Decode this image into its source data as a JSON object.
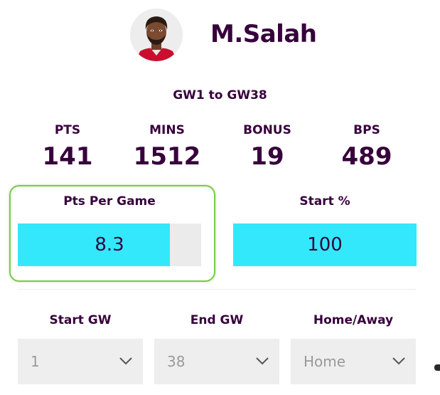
{
  "player": {
    "name": "M.Salah"
  },
  "range": {
    "label": "GW1 to GW38"
  },
  "stats": [
    {
      "label": "PTS",
      "value": "141"
    },
    {
      "label": "MINS",
      "value": "1512"
    },
    {
      "label": "BONUS",
      "value": "19"
    },
    {
      "label": "BPS",
      "value": "489"
    }
  ],
  "metrics": {
    "pts_per_game": {
      "label": "Pts Per Game",
      "value": "8.3",
      "fill_fraction": 0.83,
      "fill_color": "#33e8fb"
    },
    "start_pct": {
      "label": "Start %",
      "value": "100",
      "fill_fraction": 1.0,
      "fill_color": "#33e8fb"
    }
  },
  "filters": {
    "start_gw": {
      "label": "Start GW",
      "value": "1"
    },
    "end_gw": {
      "label": "End GW",
      "value": "38"
    },
    "home_away": {
      "label": "Home/Away",
      "value": "Home"
    }
  },
  "colors": {
    "text": "#37003c",
    "bar_fill": "#33e8fb",
    "bar_track": "#ebebeb",
    "highlight": "#77cc44",
    "select_bg": "#eeeeee"
  },
  "icons": {
    "avatar": "player-avatar-icon",
    "chevron": "chevron-down-icon"
  }
}
